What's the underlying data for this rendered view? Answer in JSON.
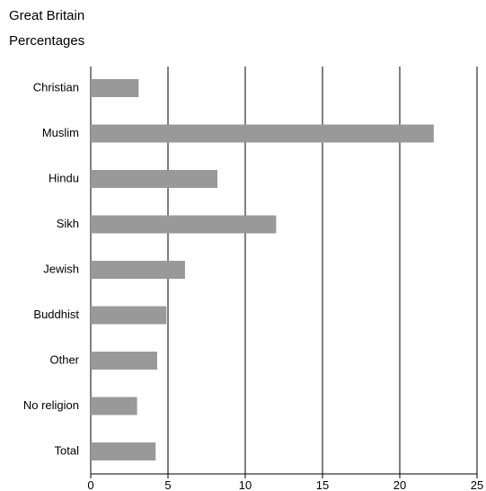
{
  "header": {
    "region": "Great Britain",
    "unit": "Percentages"
  },
  "chart_data": {
    "type": "bar",
    "orientation": "horizontal",
    "title": "",
    "xlabel": "",
    "ylabel": "",
    "categories": [
      "Christian",
      "Muslim",
      "Hindu",
      "Sikh",
      "Jewish",
      "Buddhist",
      "Other",
      "No religion",
      "Total"
    ],
    "values": [
      3.1,
      22.2,
      8.2,
      12.0,
      6.1,
      4.9,
      4.3,
      3.0,
      4.2
    ],
    "xlim": [
      0,
      25
    ],
    "xticks": [
      0,
      5,
      10,
      15,
      20,
      25
    ],
    "grid": "vertical",
    "bar_color": "#999999",
    "grid_color": "#000000"
  }
}
